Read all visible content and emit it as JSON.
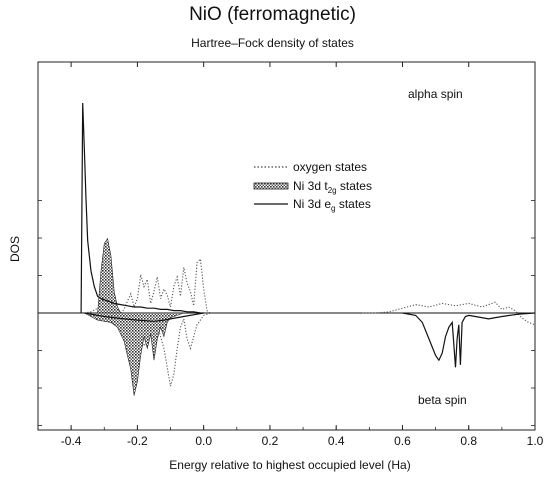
{
  "chart_data": {
    "type": "line",
    "title": "NiO (ferromagnetic)",
    "subtitle": "Hartree–Fock density of states",
    "xlabel": "Energy relative to highest occupied level (Ha)",
    "ylabel": "DOS",
    "xlim": [
      -0.5,
      1.0
    ],
    "ylim": [
      -1.0,
      1.0
    ],
    "xticks": [
      "-0.4",
      "-0.2",
      "0.0",
      "0.2",
      "0.4",
      "0.6",
      "0.8",
      "1.0"
    ],
    "xtick_values": [
      -0.4,
      -0.2,
      0.0,
      0.2,
      0.4,
      0.6,
      0.8,
      1.0
    ],
    "annotations": {
      "upper": "alpha spin",
      "lower": "beta spin"
    },
    "legend": {
      "placement": "center",
      "items": [
        {
          "text": "oxygen states",
          "style": "dotted"
        },
        {
          "text": "Ni 3d t",
          "sub": "2g",
          "suffix": " states",
          "style": "hatched"
        },
        {
          "text": "Ni 3d e",
          "sub": "g",
          "suffix": " states",
          "style": "solid"
        }
      ]
    },
    "series": [
      {
        "name": "oxygen states",
        "style": "dotted",
        "x": [
          -0.36,
          -0.34,
          -0.32,
          -0.3,
          -0.29,
          -0.28,
          -0.27,
          -0.26,
          -0.25,
          -0.24,
          -0.23,
          -0.22,
          -0.21,
          -0.2,
          -0.19,
          -0.18,
          -0.17,
          -0.16,
          -0.15,
          -0.14,
          -0.13,
          -0.12,
          -0.11,
          -0.1,
          -0.09,
          -0.08,
          -0.07,
          -0.06,
          -0.05,
          -0.04,
          -0.03,
          -0.02,
          -0.01,
          0.0,
          0.01,
          0.02
        ],
        "y": [
          0.0,
          0.01,
          0.04,
          0.08,
          0.12,
          0.1,
          0.06,
          0.02,
          0.0,
          0.03,
          0.1,
          0.16,
          0.05,
          0.12,
          0.32,
          0.22,
          0.28,
          0.08,
          0.18,
          0.3,
          0.12,
          0.2,
          0.15,
          0.05,
          0.22,
          0.3,
          0.14,
          0.38,
          0.25,
          0.18,
          0.06,
          0.42,
          0.45,
          0.2,
          0.02,
          0.0
        ]
      },
      {
        "name": "oxygen states",
        "style": "dotted",
        "x": [
          -0.3,
          -0.28,
          -0.26,
          -0.24,
          -0.22,
          -0.2,
          -0.18,
          -0.16,
          -0.14,
          -0.12,
          -0.1,
          -0.09,
          -0.08,
          -0.07,
          -0.06,
          -0.05,
          -0.04,
          -0.02,
          0.0,
          0.02
        ],
        "y": [
          0.0,
          -0.03,
          -0.06,
          -0.08,
          -0.12,
          -0.2,
          -0.28,
          -0.18,
          -0.1,
          -0.3,
          -0.62,
          -0.52,
          -0.3,
          -0.12,
          -0.05,
          -0.22,
          -0.3,
          -0.1,
          -0.02,
          0.0
        ]
      },
      {
        "name": "oxygen states",
        "style": "dotted",
        "x": [
          0.48,
          0.52,
          0.56,
          0.6,
          0.64,
          0.68,
          0.72,
          0.76,
          0.8,
          0.84,
          0.88,
          0.9,
          0.92,
          0.94,
          0.96,
          0.98,
          1.0
        ],
        "y": [
          0.0,
          0.0,
          0.01,
          0.04,
          0.07,
          0.05,
          0.08,
          0.06,
          0.08,
          0.05,
          0.09,
          0.03,
          0.05,
          0.02,
          -0.04,
          -0.08,
          -0.1
        ]
      },
      {
        "name": "Ni 3d t2g states",
        "style": "hatched",
        "x": [
          -0.32,
          -0.31,
          -0.3,
          -0.29,
          -0.285,
          -0.28,
          -0.27,
          -0.26,
          -0.25
        ],
        "y": [
          0.0,
          0.35,
          0.58,
          0.62,
          0.55,
          0.48,
          0.18,
          0.05,
          0.0
        ]
      },
      {
        "name": "Ni 3d t2g states",
        "style": "hatched",
        "x": [
          -0.36,
          -0.32,
          -0.28,
          -0.26,
          -0.24,
          -0.22,
          -0.21,
          -0.2,
          -0.19,
          -0.18,
          -0.17,
          -0.16,
          -0.15,
          -0.14,
          -0.13,
          -0.12,
          -0.11,
          -0.1,
          -0.08,
          -0.06
        ],
        "y": [
          0.0,
          -0.06,
          -0.08,
          -0.12,
          -0.24,
          -0.48,
          -0.7,
          -0.58,
          -0.36,
          -0.2,
          -0.3,
          -0.18,
          -0.4,
          -0.22,
          -0.12,
          -0.2,
          -0.08,
          -0.04,
          -0.02,
          0.0
        ]
      },
      {
        "name": "Ni 3d eg states",
        "style": "solid",
        "x": [
          -0.37,
          -0.365,
          -0.36,
          -0.355,
          -0.35,
          -0.34,
          -0.33,
          -0.32,
          -0.31,
          -0.29,
          -0.27,
          -0.25,
          -0.23,
          -0.21,
          -0.19,
          -0.17,
          -0.15,
          -0.13,
          -0.11,
          -0.09,
          -0.07,
          -0.05,
          -0.03,
          -0.01,
          0.0
        ],
        "y": [
          0.0,
          1.75,
          1.35,
          0.95,
          0.6,
          0.35,
          0.22,
          0.14,
          0.12,
          0.1,
          0.08,
          0.07,
          0.06,
          0.05,
          0.05,
          0.04,
          0.04,
          0.03,
          0.03,
          0.02,
          0.02,
          0.01,
          0.01,
          0.0,
          0.0
        ]
      },
      {
        "name": "Ni 3d eg states",
        "style": "solid",
        "x": [
          -0.36,
          -0.3,
          -0.24,
          -0.2,
          -0.15,
          -0.12,
          -0.1,
          -0.06,
          -0.02,
          0.0
        ],
        "y": [
          0.0,
          -0.03,
          -0.05,
          -0.06,
          -0.07,
          -0.06,
          -0.05,
          -0.03,
          -0.01,
          0.0
        ]
      },
      {
        "name": "Ni 3d eg states",
        "style": "solid",
        "x": [
          0.6,
          0.64,
          0.66,
          0.68,
          0.7,
          0.71,
          0.72,
          0.73,
          0.74,
          0.75,
          0.76,
          0.765,
          0.77,
          0.775,
          0.78,
          0.79,
          0.8,
          0.82,
          0.86,
          0.9,
          0.95,
          1.0
        ],
        "y": [
          0.0,
          -0.02,
          -0.08,
          -0.22,
          -0.36,
          -0.4,
          -0.34,
          -0.2,
          -0.12,
          -0.08,
          -0.46,
          -0.22,
          -0.1,
          -0.44,
          -0.08,
          -0.03,
          -0.02,
          -0.03,
          -0.05,
          -0.03,
          -0.01,
          0.0
        ]
      }
    ]
  }
}
